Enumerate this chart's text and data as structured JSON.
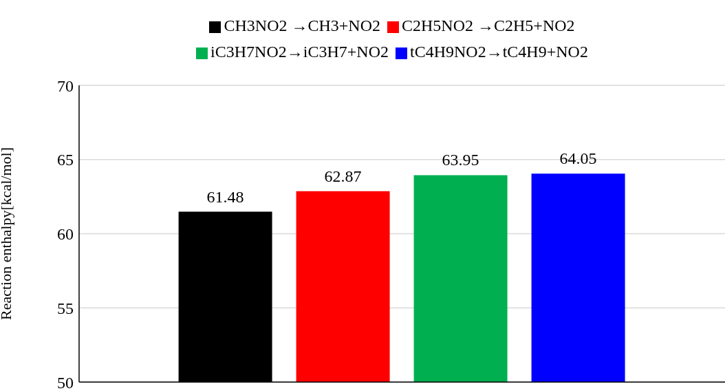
{
  "chart_data": {
    "type": "bar",
    "categories": [
      null
    ],
    "ylabel": "Reaction enthalpy[kcal/mol]",
    "ylim": [
      50,
      70
    ],
    "yticks": [
      50,
      55,
      60,
      65,
      70
    ],
    "grid": "y",
    "legend": "top",
    "data_labels": true,
    "series": [
      {
        "name": "CH3NO2 →CH3+NO2",
        "color": "#000000",
        "values": [
          61.48
        ]
      },
      {
        "name": "C2H5NO2 →C2H5+NO2",
        "color": "#ff0000",
        "values": [
          62.87
        ]
      },
      {
        "name": "iC3H7NO2→iC3H7+NO2",
        "color": "#00b050",
        "values": [
          63.95
        ]
      },
      {
        "name": "tC4H9NO2→tC4H9+NO2",
        "color": "#0000ff",
        "values": [
          64.05
        ]
      }
    ]
  }
}
